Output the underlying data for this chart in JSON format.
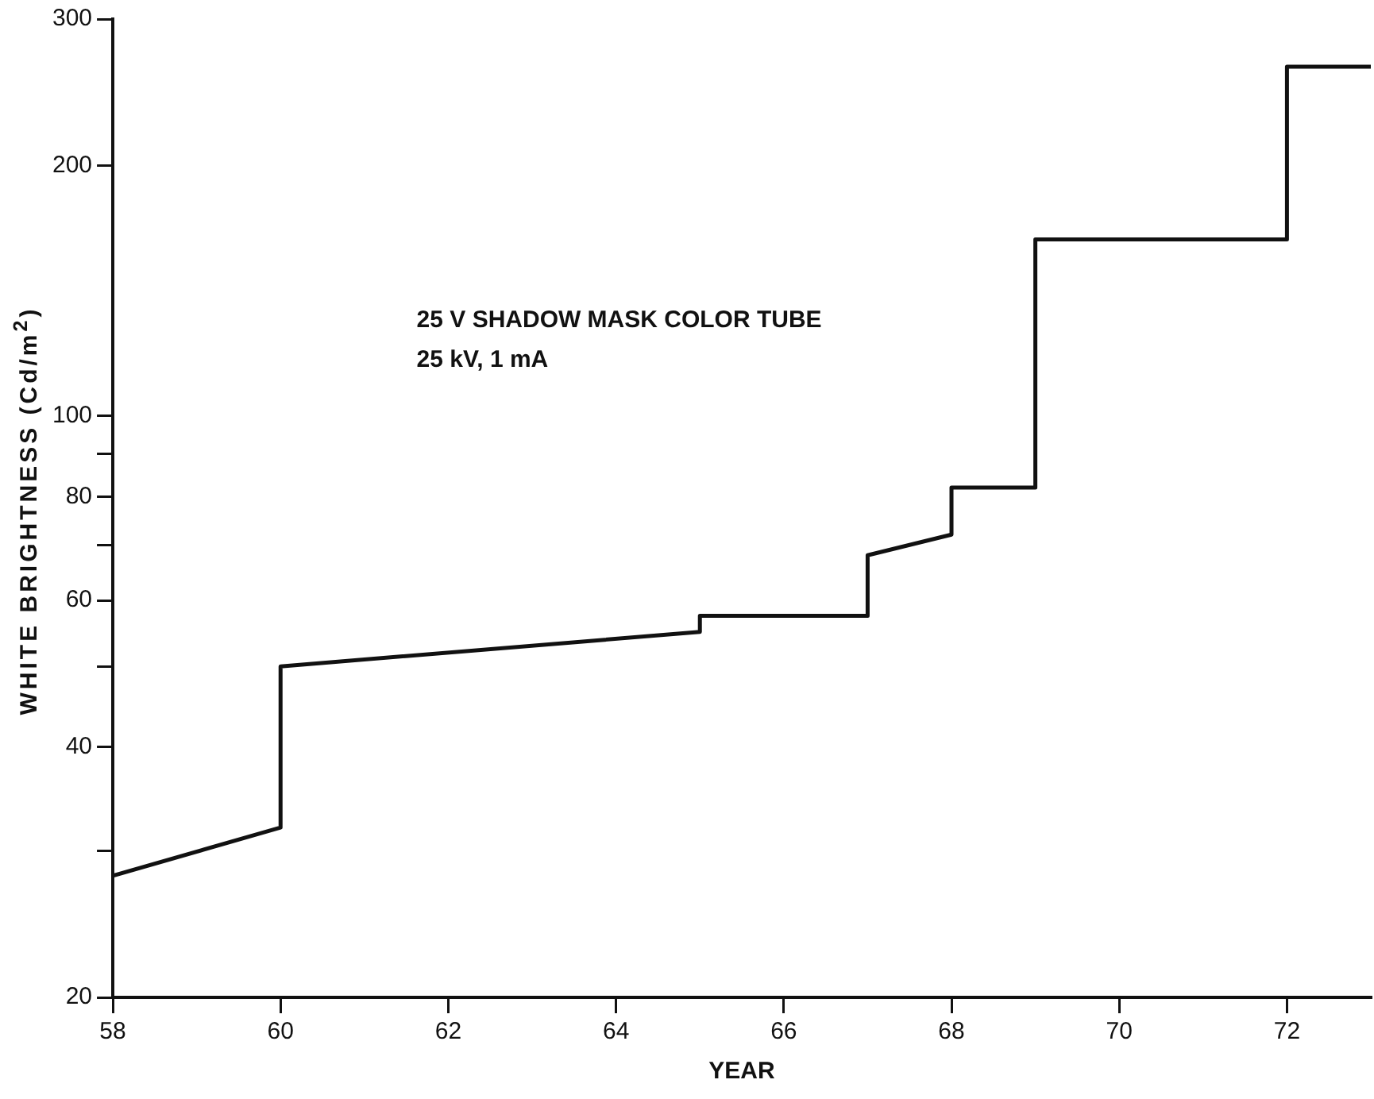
{
  "chart_data": {
    "type": "line",
    "xlabel": "YEAR",
    "ylabel": "WHITE BRIGHTNESS (Cd/m$^{2}$)",
    "log": "y",
    "grid": false,
    "legend": false,
    "marker": "none",
    "line_style": "solid",
    "xlim": [
      58,
      73
    ],
    "xticks": [
      58,
      60,
      62,
      64,
      66,
      68,
      70,
      72
    ],
    "ylim": [
      20,
      300
    ],
    "yticks": [
      20,
      {
        "value": 30,
        "label": null
      },
      40,
      {
        "value": 50,
        "label": null
      },
      60,
      {
        "value": 70,
        "label": null
      },
      80,
      {
        "value": 90,
        "label": null
      },
      100,
      200,
      300
    ],
    "annotations": [
      "25 V SHADOW MASK COLOR TUBE",
      "25 kV, 1 mA"
    ],
    "series": [
      {
        "color": "#111111",
        "x": [
          58,
          60,
          60,
          65,
          65,
          67,
          67,
          68,
          68,
          69,
          69,
          72,
          72,
          73
        ],
        "values": [
          28,
          32,
          50,
          55,
          57.5,
          57.5,
          68,
          72,
          82,
          82,
          163,
          163,
          263,
          263
        ]
      }
    ]
  }
}
